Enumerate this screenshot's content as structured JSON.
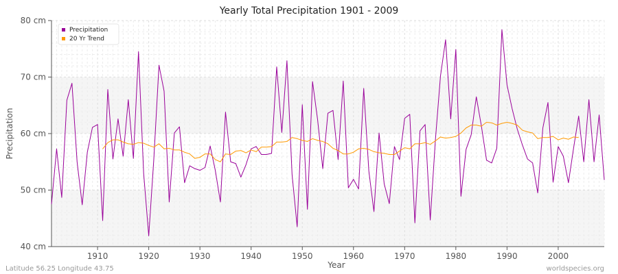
{
  "chart_data": {
    "type": "line",
    "title": "Yearly Total Precipitation 1901 - 2009",
    "xlabel": "Year",
    "ylabel": "Precipitation",
    "xlim": [
      1901,
      2009
    ],
    "ylim": [
      40,
      80
    ],
    "grid": true,
    "legend_position": "top-left",
    "x_ticks": [
      "1910",
      "1920",
      "1930",
      "1940",
      "1950",
      "1960",
      "1970",
      "1980",
      "1990",
      "2000"
    ],
    "y_ticks": [
      "40 cm",
      "50 cm",
      "60 cm",
      "70 cm",
      "80 cm"
    ],
    "series": [
      {
        "name": "Precipitation",
        "color": "#990099",
        "x_start": 1901,
        "values": [
          47.5,
          57.3,
          48.7,
          65.9,
          68.9,
          55.0,
          47.4,
          56.7,
          61.1,
          61.6,
          44.6,
          67.8,
          55.5,
          62.6,
          56.0,
          66.0,
          55.6,
          74.5,
          53.0,
          41.9,
          55.6,
          72.1,
          67.5,
          47.9,
          60.1,
          61.2,
          51.3,
          54.3,
          53.8,
          53.5,
          54.0,
          57.8,
          53.5,
          47.9,
          63.8,
          55.0,
          54.7,
          52.3,
          54.5,
          57.3,
          57.7,
          56.3,
          56.3,
          56.5,
          71.8,
          60.2,
          72.9,
          52.8,
          43.5,
          65.1,
          46.6,
          69.2,
          62.4,
          53.8,
          63.6,
          64.1,
          55.4,
          69.3,
          50.4,
          51.9,
          50.2,
          68.0,
          53.4,
          46.2,
          60.1,
          51.1,
          47.6,
          57.7,
          55.4,
          62.7,
          63.4,
          44.2,
          60.5,
          61.6,
          44.7,
          58.8,
          70.2,
          76.6,
          62.6,
          74.9,
          48.9,
          57.2,
          59.8,
          66.5,
          61.3,
          55.3,
          54.8,
          57.4,
          78.4,
          68.6,
          64.4,
          60.8,
          58.0,
          55.5,
          54.8,
          49.5,
          61.0,
          65.5,
          51.4,
          57.7,
          56.0,
          51.3,
          57.4,
          63.1,
          55.0,
          66.0,
          55.0,
          63.3,
          51.8
        ]
      },
      {
        "name": "20 Yr Trend",
        "color": "#ff9900",
        "x_start": 1911,
        "values": [
          57.3,
          58.4,
          58.9,
          58.9,
          58.5,
          58.2,
          58.1,
          58.4,
          58.3,
          57.9,
          57.6,
          58.2,
          57.3,
          57.4,
          57.1,
          57.1,
          56.7,
          56.4,
          55.6,
          55.8,
          56.4,
          56.4,
          55.4,
          55.0,
          56.4,
          56.3,
          56.9,
          57.0,
          56.6,
          57.1,
          56.8,
          57.6,
          57.6,
          57.7,
          58.5,
          58.5,
          58.6,
          59.3,
          59.1,
          58.8,
          58.6,
          59.1,
          58.8,
          58.6,
          58.2,
          57.4,
          57.0,
          56.4,
          56.4,
          56.7,
          57.3,
          57.4,
          57.2,
          56.8,
          56.6,
          56.5,
          56.3,
          56.3,
          56.9,
          57.5,
          57.3,
          58.2,
          58.2,
          58.4,
          58.1,
          58.7,
          59.4,
          59.2,
          59.3,
          59.5,
          60.1,
          61.0,
          61.5,
          61.5,
          61.3,
          62.0,
          61.9,
          61.5,
          61.8,
          62.0,
          61.8,
          61.5,
          60.6,
          60.3,
          60.1,
          59.1,
          59.3,
          59.3,
          59.5,
          58.9,
          59.2,
          59.0,
          59.4,
          59.3
        ]
      }
    ]
  },
  "footer": {
    "left": "Latitude 56.25 Longitude 43.75",
    "right": "worldspecies.org"
  }
}
